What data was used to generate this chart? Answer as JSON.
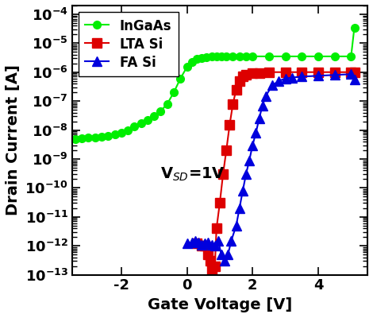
{
  "title": "",
  "xlabel": "Gate Voltage [V]",
  "ylabel": "Drain Current [A]",
  "annotation": "V$_{SD}$=1V",
  "xlim": [
    -3.5,
    5.5
  ],
  "ylim": [
    1e-13,
    0.0002
  ],
  "background_color": "#ffffff",
  "InGaAs_x": [
    -3.4,
    -3.2,
    -3.0,
    -2.8,
    -2.6,
    -2.4,
    -2.2,
    -2.0,
    -1.8,
    -1.6,
    -1.4,
    -1.2,
    -1.0,
    -0.8,
    -0.6,
    -0.4,
    -0.2,
    0.0,
    0.15,
    0.3,
    0.45,
    0.6,
    0.75,
    0.9,
    1.05,
    1.2,
    1.4,
    1.6,
    1.8,
    2.0,
    2.5,
    3.0,
    3.5,
    4.0,
    4.5,
    5.0,
    5.1
  ],
  "InGaAs_y": [
    5e-09,
    5.2e-09,
    5.4e-09,
    5.6e-09,
    5.8e-09,
    6.2e-09,
    7e-09,
    8e-09,
    1e-08,
    1.3e-08,
    1.7e-08,
    2.2e-08,
    3e-08,
    4.5e-08,
    8e-08,
    2e-07,
    6e-07,
    1.5e-06,
    2.2e-06,
    2.8e-06,
    3.1e-06,
    3.3e-06,
    3.4e-06,
    3.45e-06,
    3.45e-06,
    3.5e-06,
    3.5e-06,
    3.5e-06,
    3.5e-06,
    3.5e-06,
    3.5e-06,
    3.5e-06,
    3.5e-06,
    3.5e-06,
    3.5e-06,
    3.5e-06,
    3.5e-05
  ],
  "InGaAs_color": "#00ee00",
  "LTA_x": [
    0.3,
    0.45,
    0.55,
    0.65,
    0.7,
    0.75,
    0.8,
    0.85,
    0.9,
    1.0,
    1.1,
    1.2,
    1.3,
    1.4,
    1.5,
    1.6,
    1.7,
    1.8,
    2.0,
    2.2,
    2.5,
    3.0,
    3.5,
    4.0,
    4.5,
    5.0,
    5.1
  ],
  "LTA_y": [
    1.2e-12,
    1e-12,
    1e-12,
    5e-13,
    3e-13,
    1.5e-13,
    5e-14,
    2e-13,
    4e-12,
    3e-11,
    3e-10,
    2e-09,
    1.5e-08,
    8e-08,
    2.5e-07,
    5e-07,
    7e-07,
    8e-07,
    9e-07,
    9.5e-07,
    1e-06,
    1e-06,
    1e-06,
    1e-06,
    1e-06,
    1e-06,
    1e-06
  ],
  "LTA_color": "#dd0000",
  "FA_x": [
    0.0,
    0.15,
    0.25,
    0.35,
    0.45,
    0.55,
    0.65,
    0.75,
    0.85,
    0.95,
    1.05,
    1.15,
    1.25,
    1.35,
    1.5,
    1.6,
    1.7,
    1.8,
    1.9,
    2.0,
    2.1,
    2.2,
    2.3,
    2.4,
    2.6,
    2.8,
    3.0,
    3.2,
    3.5,
    4.0,
    4.5,
    5.0,
    5.1
  ],
  "FA_y": [
    1.2e-12,
    1.3e-12,
    1.5e-12,
    1.3e-12,
    1.1e-12,
    1.2e-12,
    1.3e-12,
    1.1e-12,
    1e-12,
    1.5e-12,
    5e-13,
    3e-13,
    5e-13,
    1.5e-12,
    5e-12,
    2e-11,
    8e-11,
    3e-10,
    9e-10,
    3e-09,
    8e-09,
    2.5e-08,
    7e-08,
    1.5e-07,
    3.5e-07,
    5e-07,
    6e-07,
    6.5e-07,
    7e-07,
    7.5e-07,
    8e-07,
    8.5e-07,
    5.5e-07
  ],
  "FA_color": "#0000dd",
  "tick_fontsize": 13,
  "label_fontsize": 14,
  "legend_fontsize": 12
}
